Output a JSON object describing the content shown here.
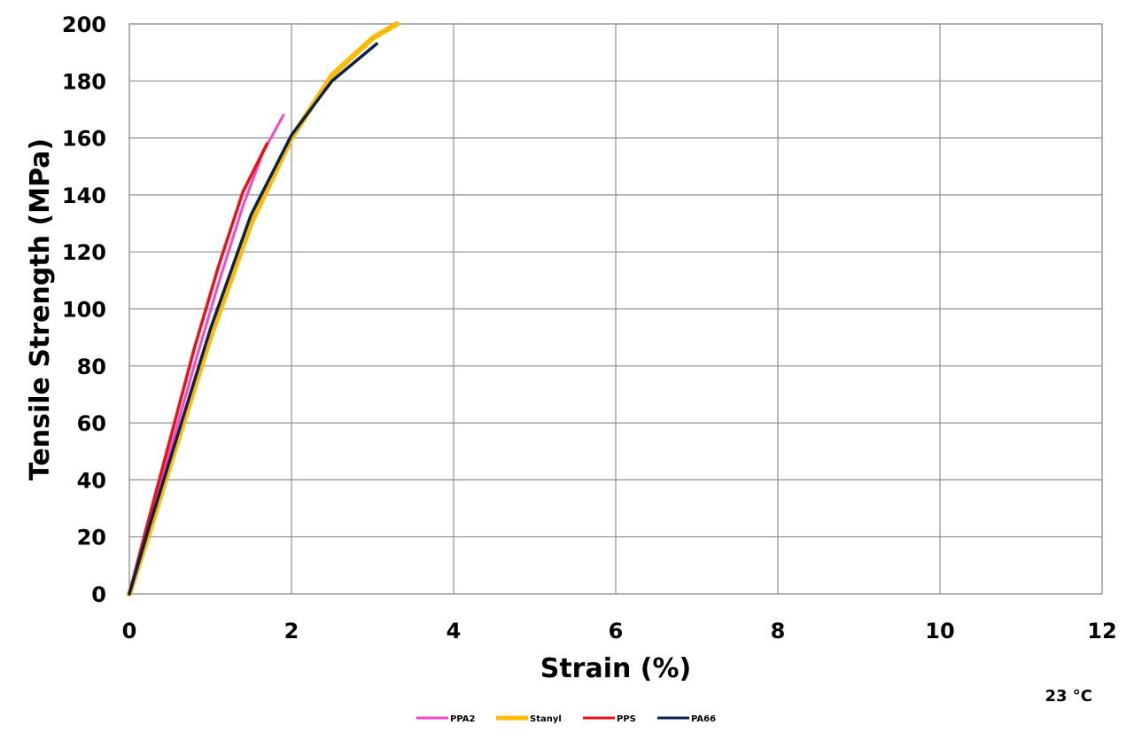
{
  "chart_data": {
    "type": "line",
    "xlabel": "Strain (%)",
    "ylabel": "Tensile Strength (MPa)",
    "annotation": "23 °C",
    "xlim": [
      0,
      12
    ],
    "ylim": [
      0,
      200
    ],
    "xticks": [
      0,
      2,
      4,
      6,
      8,
      10,
      12
    ],
    "yticks": [
      0,
      20,
      40,
      60,
      80,
      100,
      120,
      140,
      160,
      180,
      200
    ],
    "grid": true,
    "legend_position": "bottom",
    "series": [
      {
        "name": "PPA2",
        "color": "#ff44cc",
        "points": [
          [
            0,
            0
          ],
          [
            0.2,
            20
          ],
          [
            0.5,
            50
          ],
          [
            0.8,
            80
          ],
          [
            1.1,
            109
          ],
          [
            1.4,
            136
          ],
          [
            1.65,
            155
          ],
          [
            1.9,
            168
          ]
        ]
      },
      {
        "name": "Stanyl",
        "color": "#ffbb00",
        "points": [
          [
            0,
            0
          ],
          [
            0.25,
            22
          ],
          [
            0.5,
            45
          ],
          [
            1.0,
            90
          ],
          [
            1.5,
            130
          ],
          [
            2.0,
            160
          ],
          [
            2.5,
            182
          ],
          [
            3.0,
            195
          ],
          [
            3.3,
            200
          ]
        ]
      },
      {
        "name": "PPS",
        "color": "#ee1111",
        "points": [
          [
            0,
            0
          ],
          [
            0.2,
            22
          ],
          [
            0.5,
            54
          ],
          [
            0.8,
            86
          ],
          [
            1.1,
            115
          ],
          [
            1.4,
            141
          ],
          [
            1.7,
            158
          ]
        ]
      },
      {
        "name": "PA66",
        "color": "#0b2250",
        "points": [
          [
            0,
            0
          ],
          [
            0.25,
            24
          ],
          [
            0.5,
            47
          ],
          [
            1.0,
            93
          ],
          [
            1.5,
            133
          ],
          [
            2.0,
            161
          ],
          [
            2.5,
            180
          ],
          [
            3.05,
            193
          ]
        ]
      }
    ]
  }
}
